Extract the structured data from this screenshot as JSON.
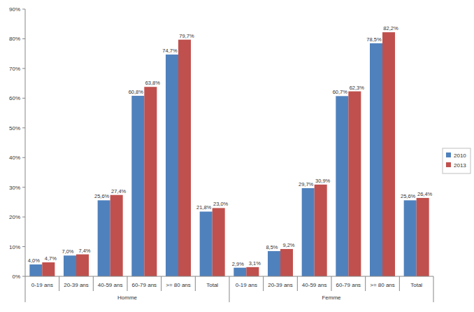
{
  "chart_data": {
    "type": "bar",
    "categories": [
      "0-19 ans",
      "20-39 ans",
      "40-59 ans",
      "60-79 ans",
      ">= 80 ans",
      "Total",
      "0-19 ans",
      "20-39 ans",
      "40-59 ans",
      "60-79 ans",
      ">= 80 ans",
      "Total"
    ],
    "category_groups": [
      "Homme",
      "Femme"
    ],
    "series": [
      {
        "name": "2010",
        "color": "#4f81bd",
        "values": [
          4.0,
          7.0,
          25.6,
          60.8,
          74.7,
          21.8,
          2.9,
          8.5,
          29.7,
          60.7,
          78.5,
          25.6
        ],
        "value_labels": [
          "4,0%",
          "7,0%",
          "25,6%",
          "60,8%",
          "74,7%",
          "21,8%",
          "2,9%",
          "8,5%",
          "29,7%",
          "60,7%",
          "78,5%",
          "25,6%"
        ]
      },
      {
        "name": "2013",
        "color": "#c0504d",
        "values": [
          4.7,
          7.4,
          27.4,
          63.8,
          79.7,
          23.0,
          3.1,
          9.2,
          30.9,
          62.3,
          82.2,
          26.4
        ],
        "value_labels": [
          "4,7%",
          "7,4%",
          "27,4%",
          "63,8%",
          "79,7%",
          "23,0%",
          "3,1%",
          "9,2%",
          "30,9%",
          "62,3%",
          "82,2%",
          "26,4%"
        ]
      }
    ],
    "ylim": [
      0,
      90
    ],
    "yticks": [
      {
        "value": 0,
        "label": "0%"
      },
      {
        "value": 10,
        "label": "10%"
      },
      {
        "value": 20,
        "label": "20%"
      },
      {
        "value": 30,
        "label": "30%"
      },
      {
        "value": 40,
        "label": "40%"
      },
      {
        "value": 50,
        "label": "50%"
      },
      {
        "value": 60,
        "label": "60%"
      },
      {
        "value": 70,
        "label": "70%"
      },
      {
        "value": 80,
        "label": "80%"
      },
      {
        "value": 90,
        "label": "90%"
      }
    ],
    "grid": false,
    "legend": "right",
    "data_labels": true
  }
}
